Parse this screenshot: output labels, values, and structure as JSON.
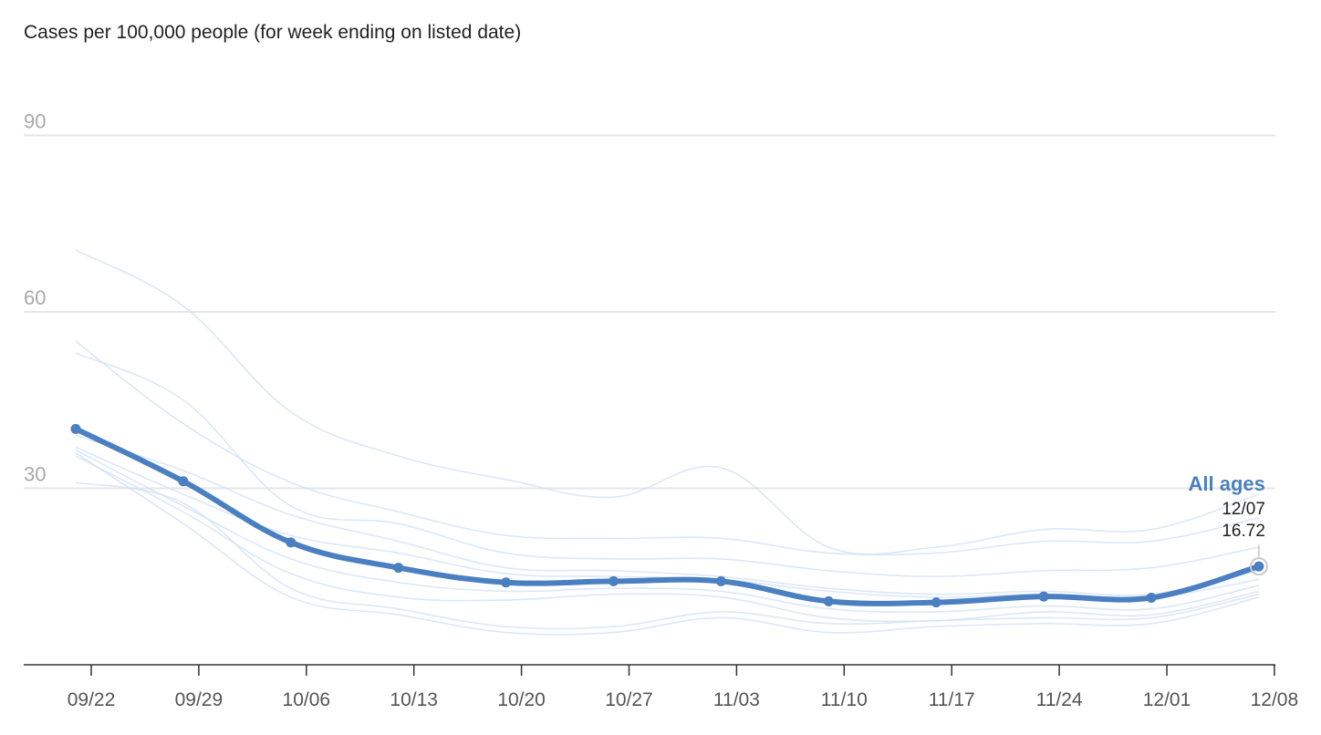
{
  "chart_data": {
    "type": "line",
    "title": "Cases per 100,000 people (for week ending on listed date)",
    "xlabel": "",
    "ylabel": "",
    "ylim": [
      0,
      100
    ],
    "yticks": [
      30,
      60,
      90
    ],
    "grid": true,
    "xtick_labels": [
      "09/22",
      "09/29",
      "10/06",
      "10/13",
      "10/20",
      "10/27",
      "11/03",
      "11/10",
      "11/17",
      "11/24",
      "12/01",
      "12/08"
    ],
    "x": [
      "09/21",
      "09/28",
      "10/05",
      "10/12",
      "10/19",
      "10/26",
      "11/02",
      "11/09",
      "11/16",
      "11/23",
      "11/30",
      "12/07"
    ],
    "series": [
      {
        "name": "All ages",
        "highlight": true,
        "color": "#4a7fc1",
        "values": [
          40.1,
          31.2,
          20.8,
          16.5,
          14.0,
          14.2,
          14.2,
          10.8,
          10.6,
          11.6,
          11.4,
          16.72
        ]
      },
      {
        "color": "#cfe0f4",
        "values": [
          70.5,
          61.0,
          43.0,
          35.5,
          31.5,
          28.5,
          33.5,
          20.0,
          20.0,
          23.0,
          23.0,
          29.0
        ]
      },
      {
        "color": "#cfe0f4",
        "values": [
          55.0,
          41.0,
          31.0,
          26.0,
          22.0,
          21.5,
          21.5,
          19.0,
          19.0,
          21.0,
          21.0,
          25.0
        ]
      },
      {
        "color": "#cfe0f4",
        "values": [
          53.0,
          45.0,
          27.0,
          24.0,
          19.0,
          18.0,
          18.0,
          16.0,
          15.0,
          16.0,
          16.5,
          20.0
        ]
      },
      {
        "color": "#cfe0f4",
        "values": [
          39.0,
          33.0,
          25.5,
          21.0,
          16.5,
          16.0,
          15.0,
          13.0,
          12.0,
          12.5,
          12.0,
          16.0
        ]
      },
      {
        "color": "#cfe0f4",
        "values": [
          37.0,
          29.0,
          22.0,
          19.0,
          15.5,
          15.0,
          14.5,
          12.5,
          11.5,
          12.0,
          11.5,
          14.5
        ]
      },
      {
        "color": "#cfe0f4",
        "values": [
          36.5,
          27.0,
          18.0,
          14.0,
          12.5,
          13.0,
          12.5,
          9.5,
          9.0,
          10.0,
          9.5,
          13.5
        ]
      },
      {
        "color": "#cfe0f4",
        "values": [
          35.5,
          26.0,
          15.5,
          11.5,
          11.0,
          12.0,
          11.5,
          8.0,
          7.5,
          9.0,
          8.5,
          12.5
        ]
      },
      {
        "color": "#cfe0f4",
        "values": [
          31.0,
          27.5,
          13.0,
          9.5,
          6.5,
          6.5,
          9.0,
          7.0,
          7.5,
          8.0,
          8.0,
          12.0
        ]
      },
      {
        "color": "#cfe0f4",
        "values": [
          36.0,
          24.0,
          11.5,
          8.5,
          5.5,
          5.5,
          8.0,
          5.5,
          6.5,
          7.0,
          7.0,
          11.5
        ]
      }
    ],
    "annotation": {
      "series_name": "All ages",
      "date": "12/07",
      "value": "16.72"
    }
  }
}
